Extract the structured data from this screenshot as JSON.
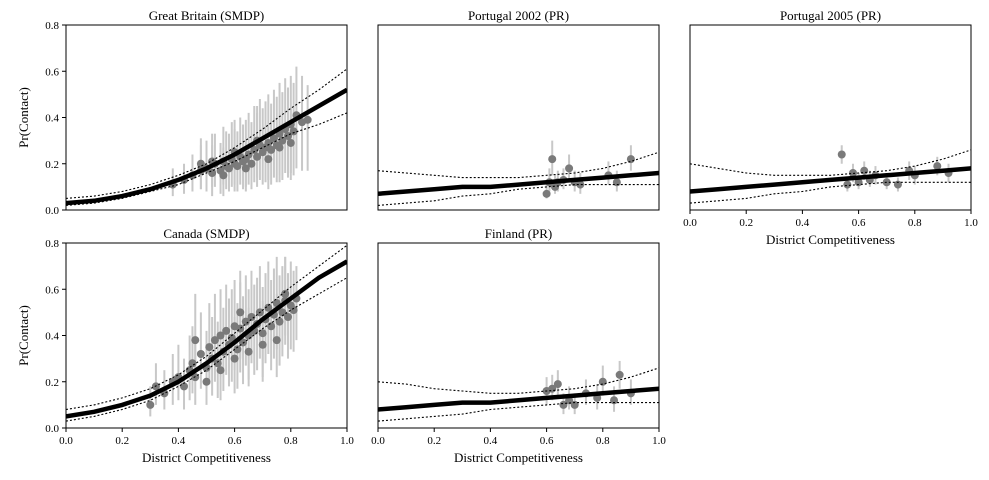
{
  "chart_data": [
    {
      "type": "scatter",
      "title": "Great Britain (SMDP)",
      "xlabel": "",
      "ylabel": "Pr(Contact)",
      "xlim": [
        0.0,
        1.0
      ],
      "ylim": [
        0.0,
        0.8
      ],
      "xticks": [],
      "yticks": [
        "0.0",
        "0.2",
        "0.4",
        "0.6",
        "0.8"
      ],
      "fit": {
        "x": [
          0.0,
          0.1,
          0.2,
          0.3,
          0.4,
          0.5,
          0.6,
          0.7,
          0.8,
          0.9,
          1.0
        ],
        "y": [
          0.03,
          0.04,
          0.06,
          0.09,
          0.13,
          0.18,
          0.24,
          0.31,
          0.38,
          0.45,
          0.52
        ],
        "lower": [
          0.02,
          0.03,
          0.05,
          0.08,
          0.11,
          0.16,
          0.21,
          0.27,
          0.33,
          0.37,
          0.42
        ],
        "upper": [
          0.05,
          0.06,
          0.08,
          0.11,
          0.15,
          0.2,
          0.27,
          0.35,
          0.44,
          0.52,
          0.61
        ]
      },
      "points": {
        "x": [
          0.38,
          0.42,
          0.45,
          0.48,
          0.5,
          0.52,
          0.53,
          0.55,
          0.56,
          0.57,
          0.58,
          0.59,
          0.6,
          0.61,
          0.62,
          0.63,
          0.64,
          0.65,
          0.66,
          0.67,
          0.68,
          0.69,
          0.7,
          0.71,
          0.72,
          0.73,
          0.74,
          0.75,
          0.76,
          0.77,
          0.78,
          0.79,
          0.8,
          0.81,
          0.82,
          0.84,
          0.86,
          0.48,
          0.52,
          0.56,
          0.6,
          0.64,
          0.68,
          0.72,
          0.76,
          0.8
        ],
        "y": [
          0.11,
          0.13,
          0.15,
          0.17,
          0.18,
          0.16,
          0.2,
          0.17,
          0.21,
          0.19,
          0.18,
          0.22,
          0.2,
          0.19,
          0.23,
          0.21,
          0.22,
          0.24,
          0.2,
          0.26,
          0.23,
          0.28,
          0.25,
          0.27,
          0.29,
          0.26,
          0.31,
          0.28,
          0.33,
          0.3,
          0.35,
          0.32,
          0.37,
          0.34,
          0.41,
          0.38,
          0.39,
          0.2,
          0.21,
          0.15,
          0.25,
          0.18,
          0.3,
          0.22,
          0.27,
          0.29
        ],
        "err_lower": [
          0.06,
          0.07,
          0.08,
          0.09,
          0.08,
          0.06,
          0.1,
          0.07,
          0.11,
          0.09,
          0.08,
          0.1,
          0.08,
          0.08,
          0.11,
          0.09,
          0.1,
          0.11,
          0.09,
          0.12,
          0.1,
          0.13,
          0.11,
          0.12,
          0.13,
          0.11,
          0.14,
          0.12,
          0.15,
          0.13,
          0.16,
          0.14,
          0.16,
          0.15,
          0.18,
          0.17,
          0.17,
          0.09,
          0.1,
          0.06,
          0.11,
          0.08,
          0.14,
          0.09,
          0.12,
          0.13
        ],
        "err_upper": [
          0.18,
          0.2,
          0.24,
          0.28,
          0.3,
          0.28,
          0.33,
          0.29,
          0.36,
          0.34,
          0.33,
          0.38,
          0.35,
          0.34,
          0.4,
          0.37,
          0.39,
          0.42,
          0.38,
          0.45,
          0.42,
          0.48,
          0.44,
          0.47,
          0.5,
          0.46,
          0.52,
          0.49,
          0.55,
          0.51,
          0.57,
          0.53,
          0.58,
          0.55,
          0.62,
          0.58,
          0.54,
          0.31,
          0.33,
          0.27,
          0.39,
          0.3,
          0.45,
          0.36,
          0.42,
          0.44
        ]
      }
    },
    {
      "type": "scatter",
      "title": "Portugal 2002 (PR)",
      "xlabel": "",
      "ylabel": "",
      "xlim": [
        0.0,
        1.0
      ],
      "ylim": [
        0.0,
        0.8
      ],
      "xticks": [],
      "yticks": [],
      "fit": {
        "x": [
          0.0,
          0.1,
          0.2,
          0.3,
          0.4,
          0.5,
          0.6,
          0.7,
          0.8,
          0.9,
          1.0
        ],
        "y": [
          0.07,
          0.08,
          0.09,
          0.1,
          0.1,
          0.11,
          0.12,
          0.13,
          0.14,
          0.15,
          0.16
        ],
        "lower": [
          0.02,
          0.03,
          0.04,
          0.06,
          0.07,
          0.09,
          0.1,
          0.11,
          0.11,
          0.11,
          0.11
        ],
        "upper": [
          0.17,
          0.16,
          0.15,
          0.14,
          0.14,
          0.14,
          0.15,
          0.16,
          0.18,
          0.21,
          0.25
        ]
      },
      "points": {
        "x": [
          0.6,
          0.61,
          0.62,
          0.63,
          0.64,
          0.66,
          0.68,
          0.7,
          0.72,
          0.82,
          0.85,
          0.9
        ],
        "y": [
          0.07,
          0.12,
          0.22,
          0.1,
          0.12,
          0.13,
          0.18,
          0.12,
          0.11,
          0.15,
          0.12,
          0.22
        ],
        "err_lower": [
          0.05,
          0.08,
          0.15,
          0.07,
          0.08,
          0.09,
          0.13,
          0.08,
          0.07,
          0.11,
          0.08,
          0.17
        ],
        "err_upper": [
          0.11,
          0.18,
          0.3,
          0.15,
          0.17,
          0.18,
          0.24,
          0.17,
          0.16,
          0.21,
          0.17,
          0.28
        ]
      }
    },
    {
      "type": "scatter",
      "title": "Portugal 2005 (PR)",
      "xlabel": "District Competitiveness",
      "ylabel": "",
      "xlim": [
        0.0,
        1.0
      ],
      "ylim": [
        0.0,
        0.8
      ],
      "xticks": [
        "0.0",
        "0.2",
        "0.4",
        "0.6",
        "0.8",
        "1.0"
      ],
      "yticks": [],
      "fit": {
        "x": [
          0.0,
          0.1,
          0.2,
          0.3,
          0.4,
          0.5,
          0.6,
          0.7,
          0.8,
          0.9,
          1.0
        ],
        "y": [
          0.08,
          0.09,
          0.1,
          0.11,
          0.12,
          0.13,
          0.14,
          0.15,
          0.16,
          0.17,
          0.18
        ],
        "lower": [
          0.03,
          0.04,
          0.05,
          0.07,
          0.08,
          0.1,
          0.11,
          0.12,
          0.12,
          0.12,
          0.12
        ],
        "upper": [
          0.2,
          0.18,
          0.16,
          0.15,
          0.15,
          0.15,
          0.16,
          0.17,
          0.19,
          0.22,
          0.26
        ]
      },
      "points": {
        "x": [
          0.54,
          0.56,
          0.58,
          0.6,
          0.62,
          0.64,
          0.66,
          0.7,
          0.74,
          0.78,
          0.8,
          0.88,
          0.92
        ],
        "y": [
          0.24,
          0.11,
          0.16,
          0.12,
          0.17,
          0.13,
          0.15,
          0.12,
          0.11,
          0.17,
          0.15,
          0.19,
          0.16
        ],
        "err_lower": [
          0.2,
          0.08,
          0.12,
          0.09,
          0.13,
          0.1,
          0.11,
          0.09,
          0.08,
          0.13,
          0.11,
          0.15,
          0.12
        ],
        "err_upper": [
          0.28,
          0.14,
          0.2,
          0.16,
          0.21,
          0.17,
          0.19,
          0.16,
          0.14,
          0.21,
          0.19,
          0.23,
          0.2
        ]
      }
    },
    {
      "type": "scatter",
      "title": "Canada (SMDP)",
      "xlabel": "District Competitiveness",
      "ylabel": "Pr(Contact)",
      "xlim": [
        0.0,
        1.0
      ],
      "ylim": [
        0.0,
        0.8
      ],
      "xticks": [
        "0.0",
        "0.2",
        "0.4",
        "0.6",
        "0.8",
        "1.0"
      ],
      "yticks": [
        "0.0",
        "0.2",
        "0.4",
        "0.6",
        "0.8"
      ],
      "fit": {
        "x": [
          0.0,
          0.1,
          0.2,
          0.3,
          0.4,
          0.5,
          0.6,
          0.7,
          0.8,
          0.9,
          1.0
        ],
        "y": [
          0.05,
          0.07,
          0.1,
          0.14,
          0.2,
          0.28,
          0.37,
          0.47,
          0.56,
          0.65,
          0.72
        ],
        "lower": [
          0.03,
          0.05,
          0.08,
          0.12,
          0.18,
          0.25,
          0.34,
          0.43,
          0.51,
          0.58,
          0.65
        ],
        "upper": [
          0.08,
          0.1,
          0.13,
          0.17,
          0.23,
          0.31,
          0.41,
          0.51,
          0.61,
          0.7,
          0.79
        ]
      },
      "points": {
        "x": [
          0.3,
          0.32,
          0.35,
          0.38,
          0.4,
          0.42,
          0.44,
          0.45,
          0.46,
          0.48,
          0.5,
          0.51,
          0.52,
          0.53,
          0.54,
          0.55,
          0.56,
          0.57,
          0.58,
          0.59,
          0.6,
          0.61,
          0.62,
          0.63,
          0.64,
          0.65,
          0.66,
          0.67,
          0.68,
          0.69,
          0.7,
          0.71,
          0.72,
          0.73,
          0.74,
          0.75,
          0.76,
          0.77,
          0.78,
          0.79,
          0.8,
          0.81,
          0.82,
          0.5,
          0.55,
          0.6,
          0.65,
          0.7,
          0.75,
          0.46,
          0.62,
          0.78
        ],
        "y": [
          0.1,
          0.18,
          0.15,
          0.2,
          0.22,
          0.18,
          0.25,
          0.28,
          0.22,
          0.32,
          0.26,
          0.35,
          0.3,
          0.38,
          0.28,
          0.4,
          0.33,
          0.42,
          0.36,
          0.39,
          0.44,
          0.34,
          0.43,
          0.37,
          0.46,
          0.4,
          0.48,
          0.42,
          0.45,
          0.5,
          0.41,
          0.47,
          0.52,
          0.44,
          0.49,
          0.54,
          0.46,
          0.5,
          0.55,
          0.48,
          0.53,
          0.51,
          0.56,
          0.2,
          0.25,
          0.3,
          0.33,
          0.36,
          0.38,
          0.38,
          0.5,
          0.58
        ],
        "err_lower": [
          0.05,
          0.1,
          0.08,
          0.1,
          0.12,
          0.08,
          0.12,
          0.15,
          0.1,
          0.17,
          0.12,
          0.19,
          0.14,
          0.2,
          0.13,
          0.22,
          0.16,
          0.23,
          0.18,
          0.2,
          0.25,
          0.17,
          0.24,
          0.19,
          0.27,
          0.21,
          0.28,
          0.23,
          0.25,
          0.3,
          0.22,
          0.28,
          0.32,
          0.25,
          0.3,
          0.34,
          0.27,
          0.31,
          0.36,
          0.3,
          0.34,
          0.33,
          0.38,
          0.1,
          0.12,
          0.15,
          0.18,
          0.2,
          0.22,
          0.2,
          0.3,
          0.4
        ],
        "err_upper": [
          0.18,
          0.28,
          0.25,
          0.32,
          0.36,
          0.3,
          0.4,
          0.44,
          0.38,
          0.5,
          0.42,
          0.54,
          0.48,
          0.58,
          0.46,
          0.6,
          0.52,
          0.62,
          0.56,
          0.6,
          0.64,
          0.54,
          0.63,
          0.57,
          0.66,
          0.6,
          0.68,
          0.62,
          0.65,
          0.7,
          0.61,
          0.67,
          0.72,
          0.64,
          0.69,
          0.74,
          0.66,
          0.7,
          0.74,
          0.67,
          0.72,
          0.68,
          0.7,
          0.34,
          0.42,
          0.48,
          0.52,
          0.55,
          0.58,
          0.58,
          0.68,
          0.74
        ]
      }
    },
    {
      "type": "scatter",
      "title": "Finland (PR)",
      "xlabel": "District Competitiveness",
      "ylabel": "",
      "xlim": [
        0.0,
        1.0
      ],
      "ylim": [
        0.0,
        0.8
      ],
      "xticks": [
        "0.0",
        "0.2",
        "0.4",
        "0.6",
        "0.8",
        "1.0"
      ],
      "yticks": [],
      "fit": {
        "x": [
          0.0,
          0.1,
          0.2,
          0.3,
          0.4,
          0.5,
          0.6,
          0.7,
          0.8,
          0.9,
          1.0
        ],
        "y": [
          0.08,
          0.09,
          0.1,
          0.11,
          0.11,
          0.12,
          0.13,
          0.14,
          0.15,
          0.16,
          0.17
        ],
        "lower": [
          0.03,
          0.04,
          0.05,
          0.06,
          0.08,
          0.09,
          0.1,
          0.11,
          0.11,
          0.11,
          0.11
        ],
        "upper": [
          0.2,
          0.19,
          0.17,
          0.16,
          0.15,
          0.15,
          0.16,
          0.17,
          0.19,
          0.22,
          0.26
        ]
      },
      "points": {
        "x": [
          0.6,
          0.62,
          0.64,
          0.66,
          0.68,
          0.7,
          0.74,
          0.78,
          0.8,
          0.84,
          0.86,
          0.9
        ],
        "y": [
          0.16,
          0.17,
          0.19,
          0.1,
          0.12,
          0.1,
          0.15,
          0.13,
          0.2,
          0.12,
          0.23,
          0.15
        ],
        "err_lower": [
          0.1,
          0.12,
          0.13,
          0.06,
          0.08,
          0.06,
          0.1,
          0.08,
          0.14,
          0.07,
          0.17,
          0.1
        ],
        "err_upper": [
          0.22,
          0.23,
          0.25,
          0.15,
          0.18,
          0.15,
          0.21,
          0.19,
          0.27,
          0.18,
          0.29,
          0.21
        ]
      }
    }
  ]
}
